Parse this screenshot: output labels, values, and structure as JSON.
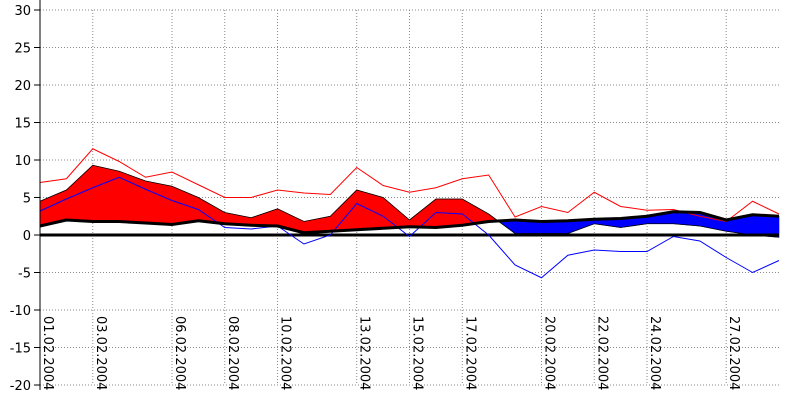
{
  "chart_data": {
    "type": "area",
    "ylim": [
      -20,
      30
    ],
    "yticks": [
      30,
      25,
      20,
      15,
      10,
      5,
      0,
      -5,
      -10,
      -15,
      -20
    ],
    "grid": true,
    "x_start": "01.02.2004",
    "x_end": "29.02.2004",
    "xtick_labels": [
      "01.02.2004",
      "03.02.2004",
      "06.02.2004",
      "08.02.2004",
      "10.02.2004",
      "13.02.2004",
      "15.02.2004",
      "17.02.2004",
      "20.02.2004",
      "22.02.2004",
      "24.02.2004",
      "27.02.2004"
    ],
    "dates": [
      "01.02.2004",
      "02.02.2004",
      "03.02.2004",
      "04.02.2004",
      "05.02.2004",
      "06.02.2004",
      "07.02.2004",
      "08.02.2004",
      "09.02.2004",
      "10.02.2004",
      "11.02.2004",
      "12.02.2004",
      "13.02.2004",
      "14.02.2004",
      "15.02.2004",
      "16.02.2004",
      "17.02.2004",
      "18.02.2004",
      "19.02.2004",
      "20.02.2004",
      "21.02.2004",
      "22.02.2004",
      "23.02.2004",
      "24.02.2004",
      "25.02.2004",
      "26.02.2004",
      "27.02.2004",
      "28.02.2004",
      "29.02.2004"
    ],
    "series": [
      {
        "values": [
          4.5,
          6.0,
          9.3,
          8.5,
          7.2,
          6.5,
          5.0,
          3.0,
          2.3,
          3.5,
          1.8,
          2.5,
          6.0,
          5.0,
          2.0,
          4.8,
          4.8,
          2.8,
          0.2,
          0.2,
          0.2,
          1.5,
          1.0,
          1.5,
          1.5,
          1.2,
          0.5,
          0.0,
          -0.3
        ]
      },
      {
        "values": [
          1.2,
          2.0,
          1.8,
          1.8,
          1.6,
          1.4,
          1.9,
          1.5,
          1.3,
          1.2,
          0.3,
          0.5,
          0.7,
          0.9,
          1.1,
          1.0,
          1.3,
          1.8,
          2.0,
          1.8,
          1.9,
          2.1,
          2.2,
          2.5,
          3.1,
          3.0,
          2.0,
          2.7,
          2.5
        ]
      },
      {
        "values": [
          7.0,
          7.5,
          11.5,
          9.8,
          7.7,
          8.4,
          6.7,
          5.0,
          5.0,
          6.0,
          5.6,
          5.4,
          9.0,
          6.6,
          5.7,
          6.3,
          7.5,
          8.0,
          2.4,
          3.8,
          3.0,
          5.7,
          3.8,
          3.3,
          3.4,
          2.5,
          1.8,
          4.5,
          2.8
        ]
      },
      {
        "values": [
          3.2,
          4.8,
          6.3,
          7.7,
          6.1,
          4.6,
          3.4,
          1.0,
          0.8,
          1.2,
          -1.2,
          0.0,
          4.2,
          2.5,
          -0.2,
          3.0,
          2.8,
          0.0,
          -4.0,
          -5.7,
          -2.7,
          -2.0,
          -2.2,
          -2.2,
          -0.2,
          -0.8,
          -3.0,
          -5.0,
          -3.4
        ]
      }
    ],
    "colors": {
      "warm_fill": "#ff0000",
      "cold_fill": "#0000ff",
      "upper_line": "#ff0000",
      "lower_line": "#0000ff",
      "base": "#000000",
      "zero_line": "#000000"
    }
  }
}
